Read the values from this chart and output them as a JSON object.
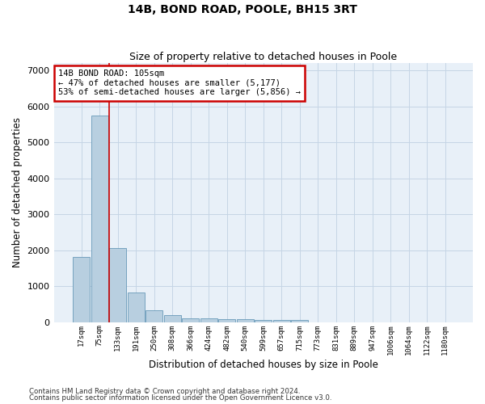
{
  "title1": "14B, BOND ROAD, POOLE, BH15 3RT",
  "title2": "Size of property relative to detached houses in Poole",
  "xlabel": "Distribution of detached houses by size in Poole",
  "ylabel": "Number of detached properties",
  "bar_labels": [
    "17sqm",
    "75sqm",
    "133sqm",
    "191sqm",
    "250sqm",
    "308sqm",
    "366sqm",
    "424sqm",
    "482sqm",
    "540sqm",
    "599sqm",
    "657sqm",
    "715sqm",
    "773sqm",
    "831sqm",
    "889sqm",
    "947sqm",
    "1006sqm",
    "1064sqm",
    "1122sqm",
    "1180sqm"
  ],
  "bar_values": [
    1800,
    5750,
    2050,
    820,
    335,
    190,
    110,
    95,
    90,
    70,
    65,
    60,
    60,
    0,
    0,
    0,
    0,
    0,
    0,
    0,
    0
  ],
  "bar_color": "#b8cfe0",
  "bar_edgecolor": "#6899b8",
  "grid_color": "#c5d5e5",
  "background_color": "#e8f0f8",
  "annotation_line1": "14B BOND ROAD: 105sqm",
  "annotation_line2": "← 47% of detached houses are smaller (5,177)",
  "annotation_line3": "53% of semi-detached houses are larger (5,856) →",
  "annotation_box_color": "#ffffff",
  "annotation_border_color": "#cc0000",
  "red_line_x": 1.5,
  "ylim": [
    0,
    7200
  ],
  "yticks": [
    0,
    1000,
    2000,
    3000,
    4000,
    5000,
    6000,
    7000
  ],
  "footnote1": "Contains HM Land Registry data © Crown copyright and database right 2024.",
  "footnote2": "Contains public sector information licensed under the Open Government Licence v3.0."
}
